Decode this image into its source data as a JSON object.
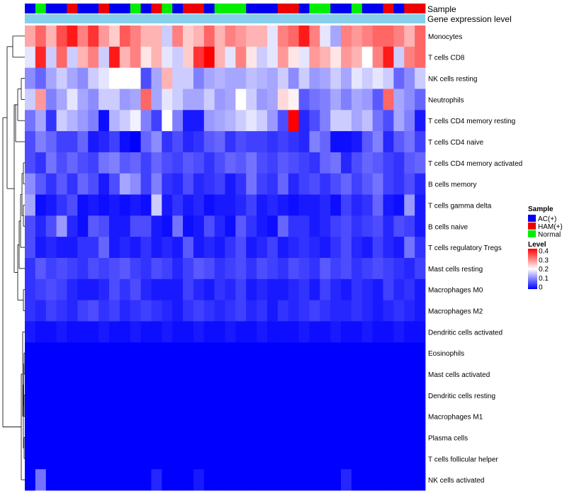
{
  "chart_data": {
    "type": "heatmap",
    "title": "",
    "annotation_labels": [
      "Sample",
      "Gene expression level"
    ],
    "legend_sample_title": "Sample",
    "legend_sample_entries": [
      {
        "label": "AC(+)",
        "color": "#0000ee"
      },
      {
        "label": "HAM(+)",
        "color": "#ee0000"
      },
      {
        "label": "Normal",
        "color": "#00ee00"
      }
    ],
    "legend_level_title": "Level",
    "legend_level_ticks": [
      "0.4",
      "0.3",
      "0.2",
      "0.1",
      "0"
    ],
    "color_scale": {
      "min": 0,
      "max": 0.4,
      "low": "#0000ff",
      "mid": "#ffffff",
      "high": "#ff0000"
    },
    "expression_bar_color": "#87ceeb",
    "sample_groups": [
      "AC(+)",
      "Normal",
      "AC(+)",
      "AC(+)",
      "HAM(+)",
      "AC(+)",
      "AC(+)",
      "HAM(+)",
      "AC(+)",
      "AC(+)",
      "Normal",
      "AC(+)",
      "HAM(+)",
      "Normal",
      "AC(+)",
      "HAM(+)",
      "HAM(+)",
      "AC(+)",
      "Normal",
      "Normal",
      "Normal",
      "AC(+)",
      "AC(+)",
      "AC(+)",
      "HAM(+)",
      "HAM(+)",
      "AC(+)",
      "Normal",
      "Normal",
      "AC(+)",
      "AC(+)",
      "Normal",
      "AC(+)",
      "AC(+)",
      "HAM(+)",
      "AC(+)",
      "HAM(+)",
      "HAM(+)"
    ],
    "rows": [
      "Monocytes",
      "T cells CD8",
      "NK cells resting",
      "Neutrophils",
      "T cells CD4 memory resting",
      "T cells CD4 naive",
      "T cells CD4 memory activated",
      "B cells memory",
      "T cells gamma delta",
      "B cells naive",
      "T cells regulatory  Tregs",
      "Mast cells resting",
      "Macrophages M0",
      "Macrophages M2",
      "Dendritic cells activated",
      "Eosinophils",
      "Mast cells activated",
      "Dendritic cells resting",
      "Macrophages M1",
      "Plasma cells",
      "T cells follicular helper",
      "NK cells activated"
    ],
    "values": [
      [
        0.27,
        0.32,
        0.26,
        0.34,
        0.38,
        0.3,
        0.36,
        0.28,
        0.24,
        0.33,
        0.3,
        0.26,
        0.26,
        0.16,
        0.3,
        0.24,
        0.26,
        0.32,
        0.26,
        0.3,
        0.28,
        0.26,
        0.26,
        0.18,
        0.3,
        0.32,
        0.38,
        0.3,
        0.18,
        0.13,
        0.3,
        0.28,
        0.3,
        0.32,
        0.32,
        0.3,
        0.26,
        0.32
      ],
      [
        0.18,
        0.37,
        0.16,
        0.32,
        0.16,
        0.26,
        0.3,
        0.16,
        0.38,
        0.26,
        0.3,
        0.22,
        0.26,
        0.18,
        0.16,
        0.24,
        0.36,
        0.4,
        0.26,
        0.18,
        0.3,
        0.22,
        0.16,
        0.18,
        0.28,
        0.22,
        0.18,
        0.28,
        0.26,
        0.22,
        0.28,
        0.26,
        0.2,
        0.3,
        0.38,
        0.16,
        0.3,
        0.32
      ],
      [
        0.11,
        0.08,
        0.13,
        0.16,
        0.13,
        0.11,
        0.16,
        0.18,
        0.2,
        0.2,
        0.2,
        0.06,
        0.13,
        0.26,
        0.16,
        0.16,
        0.1,
        0.13,
        0.14,
        0.13,
        0.13,
        0.15,
        0.14,
        0.13,
        0.16,
        0.11,
        0.16,
        0.12,
        0.13,
        0.16,
        0.13,
        0.18,
        0.16,
        0.18,
        0.16,
        0.08,
        0.11,
        0.16
      ],
      [
        0.16,
        0.28,
        0.1,
        0.13,
        0.18,
        0.13,
        0.11,
        0.16,
        0.16,
        0.12,
        0.13,
        0.32,
        0.13,
        0.18,
        0.16,
        0.13,
        0.13,
        0.16,
        0.12,
        0.13,
        0.2,
        0.16,
        0.12,
        0.13,
        0.23,
        0.21,
        0.07,
        0.09,
        0.1,
        0.13,
        0.1,
        0.13,
        0.12,
        0.07,
        0.32,
        0.13,
        0.11,
        0.08
      ],
      [
        0.09,
        0.13,
        0.04,
        0.16,
        0.14,
        0.12,
        0.1,
        0.01,
        0.14,
        0.16,
        0.19,
        0.1,
        0.05,
        0.2,
        0.1,
        0.02,
        0.02,
        0.12,
        0.13,
        0.14,
        0.16,
        0.18,
        0.16,
        0.12,
        0.06,
        0.4,
        0.03,
        0.06,
        0.1,
        0.16,
        0.16,
        0.13,
        0.15,
        0.09,
        0.06,
        0.13,
        0.1,
        0.02
      ],
      [
        0.06,
        0.1,
        0.08,
        0.05,
        0.05,
        0.08,
        0.02,
        0.03,
        0.05,
        0.01,
        0.0,
        0.08,
        0.11,
        0.04,
        0.06,
        0.03,
        0.04,
        0.07,
        0.08,
        0.04,
        0.06,
        0.05,
        0.05,
        0.04,
        0.05,
        0.04,
        0.03,
        0.1,
        0.08,
        0.01,
        0.01,
        0.02,
        0.07,
        0.1,
        0.03,
        0.07,
        0.09,
        0.05
      ],
      [
        0.06,
        0.04,
        0.09,
        0.06,
        0.08,
        0.06,
        0.05,
        0.09,
        0.1,
        0.07,
        0.08,
        0.05,
        0.08,
        0.06,
        0.05,
        0.07,
        0.06,
        0.04,
        0.06,
        0.08,
        0.07,
        0.09,
        0.06,
        0.05,
        0.07,
        0.06,
        0.05,
        0.04,
        0.08,
        0.09,
        0.03,
        0.06,
        0.08,
        0.07,
        0.05,
        0.04,
        0.07,
        0.08
      ],
      [
        0.11,
        0.07,
        0.04,
        0.07,
        0.04,
        0.08,
        0.06,
        0.02,
        0.06,
        0.13,
        0.11,
        0.05,
        0.1,
        0.04,
        0.03,
        0.06,
        0.03,
        0.04,
        0.05,
        0.02,
        0.04,
        0.09,
        0.05,
        0.04,
        0.08,
        0.03,
        0.05,
        0.06,
        0.04,
        0.06,
        0.08,
        0.05,
        0.07,
        0.09,
        0.05,
        0.04,
        0.06,
        0.03
      ],
      [
        0.13,
        0.01,
        0.02,
        0.04,
        0.06,
        0.01,
        0.02,
        0.01,
        0.02,
        0.01,
        0.02,
        0.01,
        0.16,
        0.02,
        0.04,
        0.02,
        0.03,
        0.01,
        0.02,
        0.02,
        0.03,
        0.05,
        0.02,
        0.03,
        0.02,
        0.01,
        0.02,
        0.02,
        0.03,
        0.01,
        0.05,
        0.03,
        0.04,
        0.08,
        0.02,
        0.01,
        0.12,
        0.02
      ],
      [
        0.06,
        0.03,
        0.06,
        0.12,
        0.03,
        0.01,
        0.07,
        0.06,
        0.02,
        0.02,
        0.06,
        0.06,
        0.02,
        0.01,
        0.09,
        0.01,
        0.02,
        0.06,
        0.03,
        0.01,
        0.07,
        0.04,
        0.02,
        0.01,
        0.08,
        0.04,
        0.04,
        0.02,
        0.03,
        0.05,
        0.06,
        0.04,
        0.05,
        0.06,
        0.03,
        0.06,
        0.05,
        0.02
      ],
      [
        0.06,
        0.02,
        0.03,
        0.02,
        0.02,
        0.04,
        0.04,
        0.08,
        0.02,
        0.03,
        0.02,
        0.04,
        0.02,
        0.03,
        0.02,
        0.07,
        0.02,
        0.03,
        0.02,
        0.04,
        0.06,
        0.02,
        0.03,
        0.05,
        0.02,
        0.03,
        0.04,
        0.03,
        0.02,
        0.04,
        0.06,
        0.03,
        0.02,
        0.05,
        0.03,
        0.02,
        0.09,
        0.04
      ],
      [
        0.04,
        0.07,
        0.05,
        0.06,
        0.05,
        0.04,
        0.06,
        0.05,
        0.06,
        0.07,
        0.05,
        0.04,
        0.06,
        0.05,
        0.03,
        0.05,
        0.07,
        0.06,
        0.04,
        0.05,
        0.06,
        0.04,
        0.06,
        0.05,
        0.04,
        0.06,
        0.05,
        0.04,
        0.07,
        0.05,
        0.06,
        0.04,
        0.05,
        0.06,
        0.05,
        0.04,
        0.03,
        0.05
      ],
      [
        0.04,
        0.05,
        0.06,
        0.05,
        0.03,
        0.02,
        0.02,
        0.03,
        0.06,
        0.04,
        0.06,
        0.03,
        0.02,
        0.02,
        0.02,
        0.05,
        0.03,
        0.02,
        0.04,
        0.03,
        0.05,
        0.02,
        0.03,
        0.02,
        0.02,
        0.03,
        0.04,
        0.02,
        0.05,
        0.03,
        0.02,
        0.04,
        0.03,
        0.02,
        0.05,
        0.03,
        0.04,
        0.02
      ],
      [
        0.04,
        0.03,
        0.05,
        0.04,
        0.03,
        0.05,
        0.06,
        0.04,
        0.05,
        0.03,
        0.04,
        0.05,
        0.04,
        0.03,
        0.02,
        0.04,
        0.05,
        0.04,
        0.03,
        0.04,
        0.05,
        0.03,
        0.04,
        0.02,
        0.04,
        0.03,
        0.04,
        0.05,
        0.04,
        0.03,
        0.03,
        0.04,
        0.03,
        0.02,
        0.03,
        0.04,
        0.03,
        0.02
      ],
      [
        0.02,
        0.01,
        0.01,
        0.02,
        0.01,
        0.01,
        0.01,
        0.02,
        0.01,
        0.01,
        0.02,
        0.01,
        0.01,
        0.02,
        0.01,
        0.01,
        0.02,
        0.01,
        0.01,
        0.02,
        0.01,
        0.01,
        0.02,
        0.01,
        0.01,
        0.01,
        0.02,
        0.01,
        0.01,
        0.02,
        0.01,
        0.01,
        0.02,
        0.01,
        0.01,
        0.02,
        0.01,
        0.01
      ],
      [
        0.0,
        0.0,
        0.0,
        0.0,
        0.0,
        0.0,
        0.0,
        0.0,
        0.0,
        0.0,
        0.0,
        0.0,
        0.0,
        0.0,
        0.0,
        0.0,
        0.0,
        0.0,
        0.0,
        0.0,
        0.0,
        0.0,
        0.0,
        0.0,
        0.0,
        0.0,
        0.0,
        0.0,
        0.0,
        0.0,
        0.0,
        0.0,
        0.0,
        0.0,
        0.0,
        0.0,
        0.0,
        0.0
      ],
      [
        0.0,
        0.0,
        0.0,
        0.0,
        0.0,
        0.0,
        0.0,
        0.0,
        0.0,
        0.0,
        0.0,
        0.0,
        0.0,
        0.0,
        0.0,
        0.0,
        0.0,
        0.0,
        0.0,
        0.0,
        0.0,
        0.0,
        0.0,
        0.0,
        0.0,
        0.0,
        0.0,
        0.0,
        0.0,
        0.0,
        0.0,
        0.0,
        0.0,
        0.0,
        0.0,
        0.0,
        0.0,
        0.0
      ],
      [
        0.0,
        0.0,
        0.0,
        0.0,
        0.0,
        0.0,
        0.0,
        0.0,
        0.0,
        0.0,
        0.0,
        0.0,
        0.0,
        0.0,
        0.0,
        0.0,
        0.0,
        0.0,
        0.0,
        0.0,
        0.0,
        0.0,
        0.0,
        0.0,
        0.0,
        0.0,
        0.0,
        0.0,
        0.0,
        0.0,
        0.0,
        0.0,
        0.0,
        0.0,
        0.0,
        0.0,
        0.0,
        0.0
      ],
      [
        0.0,
        0.0,
        0.0,
        0.0,
        0.0,
        0.0,
        0.0,
        0.0,
        0.0,
        0.0,
        0.0,
        0.0,
        0.0,
        0.0,
        0.0,
        0.0,
        0.0,
        0.0,
        0.0,
        0.0,
        0.0,
        0.0,
        0.0,
        0.0,
        0.0,
        0.0,
        0.0,
        0.0,
        0.0,
        0.0,
        0.0,
        0.0,
        0.0,
        0.0,
        0.0,
        0.0,
        0.0,
        0.0
      ],
      [
        0.0,
        0.0,
        0.0,
        0.0,
        0.0,
        0.0,
        0.0,
        0.0,
        0.0,
        0.0,
        0.0,
        0.0,
        0.0,
        0.0,
        0.0,
        0.0,
        0.0,
        0.0,
        0.0,
        0.0,
        0.0,
        0.0,
        0.0,
        0.0,
        0.0,
        0.0,
        0.0,
        0.0,
        0.0,
        0.0,
        0.0,
        0.0,
        0.0,
        0.0,
        0.0,
        0.0,
        0.0,
        0.0
      ],
      [
        0.0,
        0.0,
        0.0,
        0.0,
        0.0,
        0.0,
        0.0,
        0.0,
        0.0,
        0.0,
        0.0,
        0.0,
        0.0,
        0.0,
        0.0,
        0.0,
        0.0,
        0.0,
        0.0,
        0.0,
        0.0,
        0.0,
        0.0,
        0.0,
        0.0,
        0.0,
        0.0,
        0.0,
        0.0,
        0.0,
        0.0,
        0.0,
        0.0,
        0.0,
        0.0,
        0.0,
        0.0,
        0.0
      ],
      [
        0.0,
        0.09,
        0.0,
        0.0,
        0.0,
        0.0,
        0.0,
        0.0,
        0.0,
        0.0,
        0.0,
        0.0,
        0.03,
        0.0,
        0.0,
        0.0,
        0.02,
        0.0,
        0.0,
        0.0,
        0.0,
        0.0,
        0.0,
        0.0,
        0.0,
        0.0,
        0.0,
        0.0,
        0.0,
        0.0,
        0.03,
        0.0,
        0.0,
        0.0,
        0.0,
        0.0,
        0.0,
        0.0
      ]
    ]
  }
}
